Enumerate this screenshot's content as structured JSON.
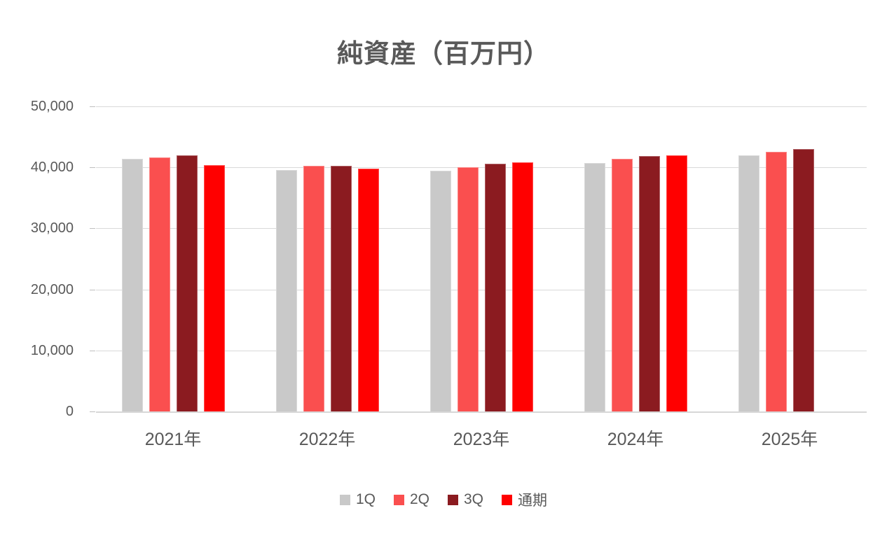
{
  "title": "純資産（百万円）",
  "accent_colors": {
    "q1_gray": "#C9C9C9",
    "q2_coral": "#FA4F4F",
    "q3_maroon": "#8B1B20",
    "full_year_red": "#FF0000",
    "gridline": "#D9D9D9",
    "axis_text": "#595959"
  },
  "chart_data": {
    "type": "bar",
    "title": "純資産（百万円）",
    "categories": [
      "2021年",
      "2022年",
      "2023年",
      "2024年",
      "2025年"
    ],
    "series": [
      {
        "name": "1Q",
        "color": "#C9C9C9",
        "values": [
          41400,
          39600,
          39400,
          40700,
          42000
        ]
      },
      {
        "name": "2Q",
        "color": "#FA4F4F",
        "values": [
          41600,
          40300,
          40000,
          41400,
          42500
        ]
      },
      {
        "name": "3Q",
        "color": "#8B1B20",
        "values": [
          42000,
          40300,
          40600,
          41900,
          43000
        ]
      },
      {
        "name": "通期",
        "color": "#FF0000",
        "values": [
          40400,
          39800,
          40800,
          42000,
          null
        ]
      }
    ],
    "xlabel": "",
    "ylabel": "",
    "ylim": [
      0,
      50000
    ],
    "yticks": [
      {
        "label": "50,000",
        "value": 50000
      },
      {
        "label": "40,000",
        "value": 40000
      },
      {
        "label": "30,000",
        "value": 30000
      },
      {
        "label": "20,000",
        "value": 20000
      },
      {
        "label": "10,000",
        "value": 10000
      },
      {
        "label": "0",
        "value": 0
      }
    ],
    "grid": true,
    "legend_position": "bottom",
    "legend_entries": [
      "1Q",
      "2Q",
      "3Q",
      "通期"
    ]
  }
}
